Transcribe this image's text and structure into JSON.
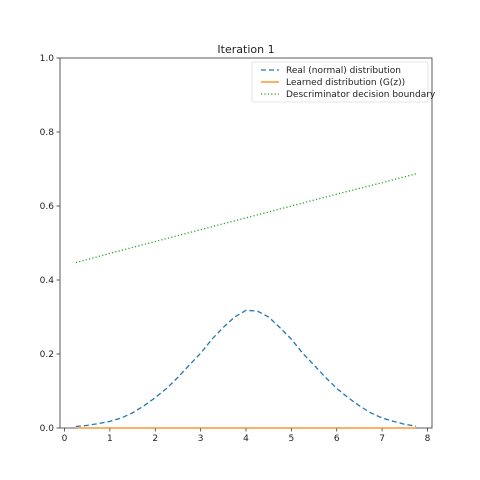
{
  "chart_data": {
    "type": "line",
    "title": "Iteration 1",
    "xlabel": "",
    "ylabel": "",
    "xlim": [
      -0.1,
      8.1
    ],
    "ylim": [
      0,
      1.0
    ],
    "x_ticks": [
      0,
      1,
      2,
      3,
      4,
      5,
      6,
      7,
      8
    ],
    "x_tick_labels": [
      "0",
      "1",
      "2",
      "3",
      "4",
      "5",
      "6",
      "7",
      "8"
    ],
    "y_ticks": [
      0,
      0.2,
      0.4,
      0.6,
      0.8,
      1.0
    ],
    "y_tick_labels": [
      "0.0",
      "0.2",
      "0.4",
      "0.6",
      "0.8",
      "1.0"
    ],
    "grid": false,
    "legend_position": "top-right",
    "series": [
      {
        "name": "Real (normal) distribution",
        "color": "#1f77b4",
        "style": "dashed",
        "x": [
          0.25,
          0.5,
          0.75,
          1.0,
          1.25,
          1.5,
          1.75,
          2.0,
          2.25,
          2.5,
          2.75,
          3.0,
          3.25,
          3.5,
          3.75,
          4.0,
          4.25,
          4.5,
          4.75,
          5.0,
          5.25,
          5.5,
          5.75,
          6.0,
          6.25,
          6.5,
          6.75,
          7.0,
          7.25,
          7.5,
          7.75
        ],
        "y": [
          0.004,
          0.007,
          0.012,
          0.018,
          0.027,
          0.041,
          0.06,
          0.082,
          0.107,
          0.137,
          0.17,
          0.202,
          0.24,
          0.272,
          0.3,
          0.318,
          0.316,
          0.3,
          0.271,
          0.24,
          0.202,
          0.17,
          0.137,
          0.107,
          0.082,
          0.06,
          0.041,
          0.027,
          0.018,
          0.01,
          0.005
        ]
      },
      {
        "name": "Learned distribution (G(z))",
        "color": "#ff7f0e",
        "style": "solid",
        "x": [
          0.25,
          7.75
        ],
        "y": [
          0.0,
          0.0
        ]
      },
      {
        "name": "Descriminator decision boundary",
        "color": "#2ca02c",
        "style": "dotted",
        "x": [
          0.25,
          1.0,
          2.0,
          3.0,
          4.0,
          5.0,
          6.0,
          7.0,
          7.75
        ],
        "y": [
          0.447,
          0.472,
          0.504,
          0.536,
          0.568,
          0.6,
          0.632,
          0.663,
          0.687
        ]
      }
    ]
  }
}
